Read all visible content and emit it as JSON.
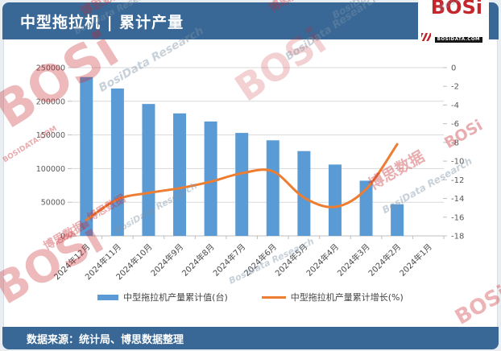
{
  "header": {
    "title": "中型拖拉机 | 累计产量",
    "logo": {
      "text": "BOSi",
      "subtext": "BOSIDATA.COM"
    }
  },
  "footer": {
    "source_text": "数据来源：统计局、博思数据整理"
  },
  "watermarks": {
    "brand": "BOSi",
    "brand_cn": "博思数据",
    "research": "BosiData Research",
    "domain": "BOSIDATA.COM"
  },
  "colors": {
    "header_bg": "#396896",
    "bar": "#5B9BD5",
    "line": "#ED7D31",
    "grid": "#D9D9D9",
    "axis_line": "#BFBFBF",
    "axis_text": "#595959",
    "x_label_text": "#4A4A4A",
    "page_bg": "#E9EEF2",
    "logo_red": "#C4262C"
  },
  "chart_data": {
    "type": "bar+line",
    "title": "中型拖拉机 | 累计产量",
    "categories": [
      "2024年12月",
      "2024年11月",
      "2024年10月",
      "2024年9月",
      "2024年8月",
      "2024年7月",
      "2024年6月",
      "2024年5月",
      "2024年4月",
      "2024年3月",
      "2024年2月",
      "2024年1月"
    ],
    "series": [
      {
        "name": "中型拖拉机产量累计值(台)",
        "type": "bar",
        "axis": "left",
        "values": [
          236000,
          219000,
          196000,
          182000,
          170000,
          153000,
          142000,
          126000,
          106000,
          82000,
          47000,
          null
        ]
      },
      {
        "name": "中型拖拉机产量累计增长(%)",
        "type": "line",
        "axis": "right",
        "values": [
          -16.3,
          -14.1,
          -13.4,
          -12.9,
          -12.2,
          -11.3,
          -11.1,
          -13.9,
          -14.9,
          -13.0,
          -8.2,
          null
        ]
      }
    ],
    "left_axis": {
      "min": 0,
      "max": 250000,
      "ticks": [
        0,
        50000,
        100000,
        150000,
        200000,
        250000
      ],
      "tick_labels": [
        "0",
        "50000",
        "100000",
        "150000",
        "200000",
        "250000"
      ]
    },
    "right_axis": {
      "min": -18,
      "max": 0,
      "ticks": [
        0,
        -2,
        -4,
        -6,
        -8,
        -10,
        -12,
        -14,
        -16,
        -18
      ],
      "tick_labels": [
        "0",
        "-2",
        "-4",
        "-6",
        "-8",
        "-10",
        "-12",
        "-14",
        "-16",
        "-18"
      ]
    },
    "grid": true,
    "legend_position": "bottom"
  }
}
